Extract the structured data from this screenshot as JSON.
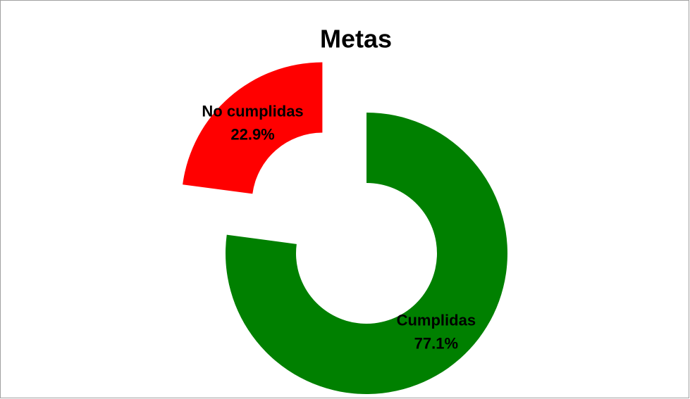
{
  "chart_data": {
    "type": "donut",
    "title": "Metas",
    "categories": [
      "Cumplidas",
      "No cumplidas"
    ],
    "values": [
      77.1,
      22.9
    ],
    "value_labels": [
      "77.1%",
      "22.9%"
    ],
    "colors": [
      "#008000",
      "#ff0000"
    ]
  }
}
